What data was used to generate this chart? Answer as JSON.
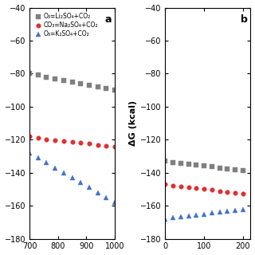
{
  "panel_a": {
    "label": "a",
    "xlim": [
      700,
      1000
    ],
    "ylim": [
      -180,
      -40
    ],
    "xticks": [
      700,
      800,
      900,
      1000
    ],
    "yticks": [
      -180,
      -160,
      -140,
      -120,
      -100,
      -80,
      -60,
      -40
    ],
    "series": [
      {
        "color": "#808080",
        "marker": "s",
        "x": [
          700,
          730,
          760,
          790,
          820,
          850,
          880,
          910,
          940,
          970,
          1000
        ],
        "y": [
          -80,
          -81,
          -82,
          -83,
          -84,
          -85,
          -86,
          -87,
          -88,
          -89,
          -90
        ]
      },
      {
        "color": "#e03030",
        "marker": "o",
        "x": [
          700,
          730,
          760,
          790,
          820,
          850,
          880,
          910,
          940,
          970,
          1000
        ],
        "y": [
          -118,
          -119,
          -120,
          -120.5,
          -121,
          -121.5,
          -122,
          -122.5,
          -123,
          -123.5,
          -124
        ]
      },
      {
        "color": "#4472c4",
        "marker": "^",
        "x": [
          700,
          730,
          760,
          790,
          820,
          850,
          880,
          910,
          940,
          970,
          1000
        ],
        "y": [
          -128,
          -131,
          -134,
          -137,
          -140,
          -143,
          -146,
          -149,
          -152,
          -155,
          -158
        ]
      }
    ],
    "legend": [
      {
        "label": "O₃=Li₂SO₄+CO₂",
        "color": "#808080",
        "marker": "s"
      },
      {
        "label": "CO₃=Na₂SO₄+CO₂",
        "color": "#e03030",
        "marker": "o"
      },
      {
        "label": "O₃=K₂SO₄+CO₂",
        "color": "#4472c4",
        "marker": "^"
      }
    ]
  },
  "panel_b": {
    "label": "b",
    "xlim": [
      0,
      220
    ],
    "ylim": [
      -180,
      -40
    ],
    "xticks": [
      0,
      100,
      200
    ],
    "yticks": [
      -180,
      -160,
      -140,
      -120,
      -100,
      -80,
      -60,
      -40
    ],
    "ylabel": "ΔG (kcal)",
    "series": [
      {
        "color": "#808080",
        "marker": "s",
        "x": [
          0,
          20,
          40,
          60,
          80,
          100,
          120,
          140,
          160,
          180,
          200
        ],
        "y": [
          -133,
          -134,
          -134.5,
          -135,
          -135.5,
          -136,
          -136.5,
          -137,
          -137.5,
          -138,
          -138.5
        ]
      },
      {
        "color": "#e03030",
        "marker": "o",
        "x": [
          0,
          20,
          40,
          60,
          80,
          100,
          120,
          140,
          160,
          180,
          200
        ],
        "y": [
          -147,
          -148,
          -148.5,
          -149,
          -149.5,
          -150,
          -150.5,
          -151,
          -151.5,
          -152,
          -152.5
        ]
      },
      {
        "color": "#4472c4",
        "marker": "^",
        "x": [
          0,
          20,
          40,
          60,
          80,
          100,
          120,
          140,
          160,
          180,
          200
        ],
        "y": [
          -168,
          -167,
          -166.5,
          -166,
          -165.5,
          -165,
          -164.5,
          -164,
          -163.5,
          -163,
          -162.5
        ]
      }
    ]
  },
  "background_color": "#ffffff"
}
